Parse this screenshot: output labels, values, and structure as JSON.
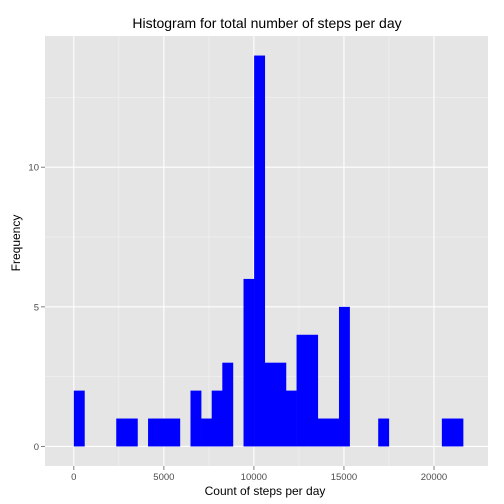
{
  "chart_data": {
    "type": "bar",
    "title": "Histogram for total number of steps per day",
    "xlabel": "Count of steps per day",
    "ylabel": "Frequency",
    "xlim": [
      -1600,
      23000
    ],
    "ylim": [
      -0.7,
      14.7
    ],
    "x_ticks": [
      0,
      5000,
      10000,
      15000,
      20000
    ],
    "x_tick_labels": [
      "0",
      "5000",
      "10000",
      "15000",
      "20000"
    ],
    "y_ticks": [
      0,
      5,
      10
    ],
    "y_tick_labels": [
      "0",
      "5",
      "10"
    ],
    "bin_width": 589,
    "bins": [
      {
        "start": 0,
        "count": 2
      },
      {
        "start": 2356,
        "count": 1
      },
      {
        "start": 2945,
        "count": 1
      },
      {
        "start": 4123,
        "count": 1
      },
      {
        "start": 4712,
        "count": 1
      },
      {
        "start": 5301,
        "count": 1
      },
      {
        "start": 6479,
        "count": 2
      },
      {
        "start": 7068,
        "count": 1
      },
      {
        "start": 7657,
        "count": 2
      },
      {
        "start": 8246,
        "count": 3
      },
      {
        "start": 9424,
        "count": 6
      },
      {
        "start": 10013,
        "count": 14
      },
      {
        "start": 10602,
        "count": 3
      },
      {
        "start": 11191,
        "count": 3
      },
      {
        "start": 11780,
        "count": 2
      },
      {
        "start": 12369,
        "count": 4
      },
      {
        "start": 12958,
        "count": 4
      },
      {
        "start": 13547,
        "count": 1
      },
      {
        "start": 14136,
        "count": 1
      },
      {
        "start": 14725,
        "count": 5
      },
      {
        "start": 16903,
        "count": 1
      },
      {
        "start": 20437,
        "count": 1
      },
      {
        "start": 21026,
        "count": 1
      }
    ],
    "colors": {
      "bar": "#0000ff",
      "panel": "#e5e5e5",
      "grid_major": "#ffffff",
      "grid_minor": "#f2f2f2",
      "tick_text": "#4d4d4d"
    },
    "grid": true
  }
}
